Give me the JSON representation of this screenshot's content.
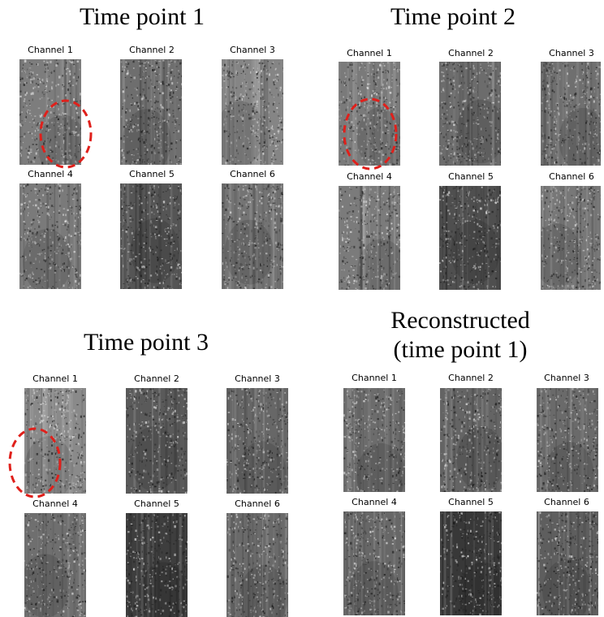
{
  "panels": [
    {
      "id": "tp1",
      "title_lines": [
        "Time point 1"
      ],
      "channels": [
        "Channel 1",
        "Channel 2",
        "Channel 3",
        "Channel 4",
        "Channel 5",
        "Channel 6"
      ],
      "tile_tone": [
        "#7d7d7d",
        "#6e6e6e",
        "#858585",
        "#7a7a7a",
        "#555555",
        "#747474"
      ]
    },
    {
      "id": "tp2",
      "title_lines": [
        "Time point 2"
      ],
      "channels": [
        "Channel 1",
        "Channel 2",
        "Channel 3",
        "Channel 4",
        "Channel 5",
        "Channel 6"
      ],
      "tile_tone": [
        "#7a7a7a",
        "#6c6c6c",
        "#6f6f6f",
        "#7b7b7b",
        "#4f4f4f",
        "#787878"
      ]
    },
    {
      "id": "tp3",
      "title_lines": [
        "Time point 3"
      ],
      "channels": [
        "Channel 1",
        "Channel 2",
        "Channel 3",
        "Channel 4",
        "Channel 5",
        "Channel 6"
      ],
      "tile_tone": [
        "#8a8a8a",
        "#5a5a5a",
        "#676767",
        "#6f6f6f",
        "#3e3e3e",
        "#6a6a6a"
      ]
    },
    {
      "id": "recon",
      "title_lines": [
        "Reconstructed",
        "(time point 1)"
      ],
      "channels": [
        "Channel 1",
        "Channel 2",
        "Channel 3",
        "Channel 4",
        "Channel 5",
        "Channel 6"
      ],
      "tile_tone": [
        "#6c6c6c",
        "#646464",
        "#6a6a6a",
        "#676767",
        "#383838",
        "#5e5e5e"
      ]
    }
  ],
  "highlight_color": "#e0201b"
}
